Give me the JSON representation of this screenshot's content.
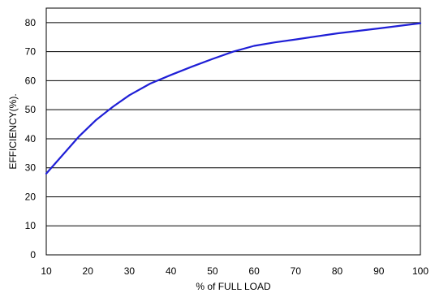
{
  "chart_data": {
    "type": "line",
    "title": "",
    "xlabel": "% of FULL LOAD",
    "ylabel": "EFFICIENCY(%).",
    "xlim": [
      10,
      100
    ],
    "ylim": [
      0,
      85
    ],
    "xticks": [
      10,
      20,
      30,
      40,
      50,
      60,
      70,
      80,
      90,
      100
    ],
    "yticks": [
      0,
      10,
      20,
      30,
      40,
      50,
      60,
      70,
      80
    ],
    "grid": "horizontal",
    "legend": "none",
    "series": [
      {
        "color": "#1f1fd6",
        "x": [
          10,
          14,
          18,
          22,
          26,
          30,
          35,
          40,
          45,
          50,
          55,
          60,
          65,
          70,
          80,
          90,
          100
        ],
        "y": [
          28,
          34.5,
          41,
          46.5,
          51,
          55,
          59,
          62,
          64.8,
          67.5,
          70,
          72,
          73.2,
          74.2,
          76.3,
          78,
          79.8
        ]
      }
    ]
  }
}
